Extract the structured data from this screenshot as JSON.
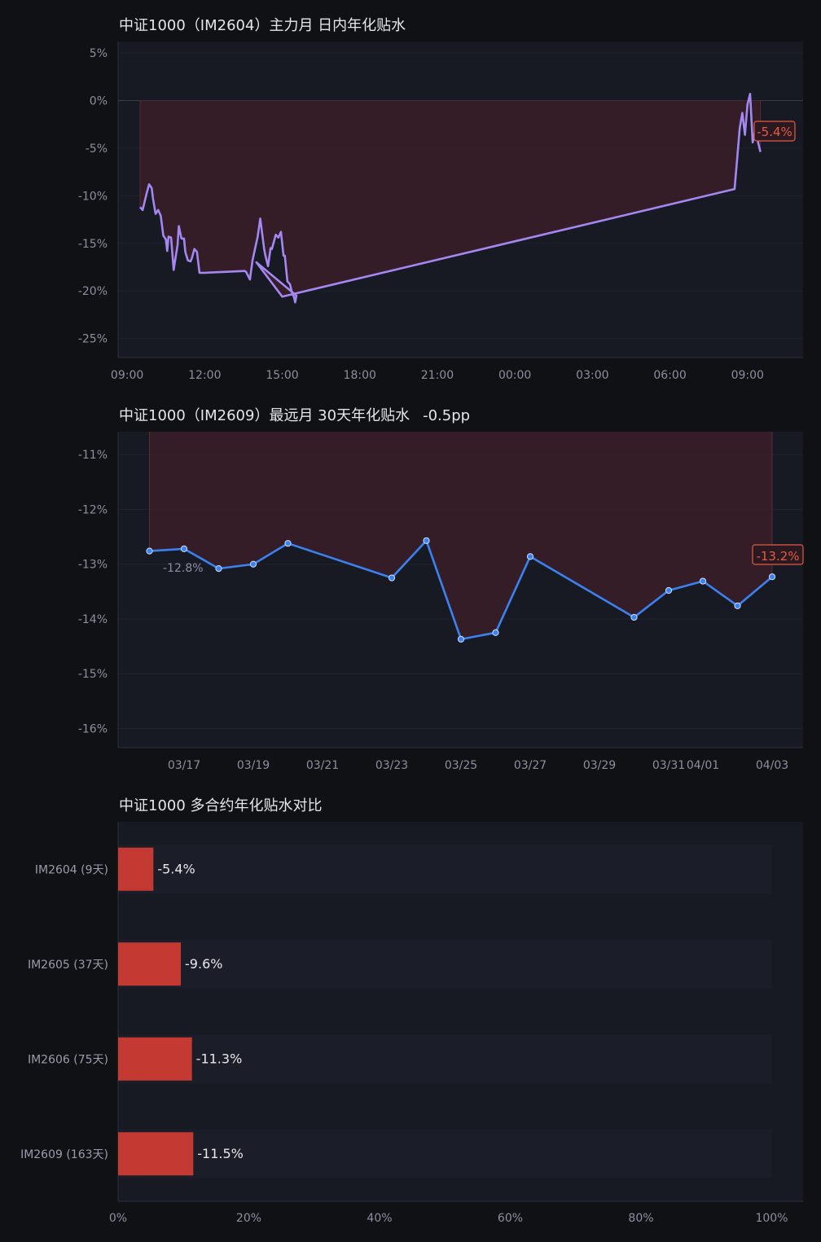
{
  "colors": {
    "background": "#101115",
    "panel": "#171a23",
    "line_intraday": "#a487f0",
    "line_daily": "#3b82f0",
    "fill_discount": "#3a1f28",
    "bar": "#c43a33",
    "label_red": "#e45a48"
  },
  "chart_data": [
    {
      "type": "line",
      "title": "中证1000（IM2604）主力月 日内年化贴水",
      "xlabel": "",
      "ylabel": "",
      "x_tick_labels": [
        "09:00",
        "12:00",
        "15:00",
        "18:00",
        "21:00",
        "00:00",
        "03:00",
        "06:00",
        "09:00"
      ],
      "x_unit": "hours since 09:00",
      "y_tick_labels": [
        "5%",
        "0%",
        "-5%",
        "-10%",
        "-15%",
        "-20%",
        "-25%"
      ],
      "ylim": [
        -27,
        6.2
      ],
      "xlim": [
        -0.35,
        26.15
      ],
      "series": [
        {
          "name": "",
          "x": [
            0.5,
            0.6,
            0.75,
            0.85,
            0.95,
            1.0,
            1.1,
            1.2,
            1.3,
            1.4,
            1.5,
            1.55,
            1.6,
            1.7,
            1.8,
            1.85,
            1.95,
            2.0,
            2.1,
            2.2,
            2.25,
            2.35,
            2.45,
            2.5,
            2.6,
            2.7,
            2.8,
            2.95,
            3.0,
            4.55,
            4.6,
            4.75,
            4.85,
            5.05,
            5.15,
            5.3,
            5.35,
            5.45,
            5.55,
            5.6,
            5.75,
            5.85,
            5.95,
            6.05,
            6.1,
            6.2,
            6.3,
            6.4,
            6.45,
            6.5,
            6.55,
            5.0,
            6.0,
            23.5,
            23.7,
            23.8,
            23.9,
            24.0,
            24.1,
            24.2,
            24.3,
            24.4,
            24.5
          ],
          "values": [
            -11.2,
            -11.5,
            -9.8,
            -8.8,
            -9.2,
            -10.3,
            -11.9,
            -11.5,
            -12.1,
            -14.2,
            -14.6,
            -15.8,
            -14.3,
            -14.4,
            -17.8,
            -16.9,
            -15.2,
            -13.2,
            -14.5,
            -14.5,
            -15.9,
            -16.8,
            -16.9,
            -16.6,
            -15.6,
            -15.9,
            -18.1,
            -18.1,
            -18.1,
            -17.9,
            -18.0,
            -18.8,
            -16.8,
            -14.3,
            -12.4,
            -15.6,
            -16.3,
            -17.4,
            -15.5,
            -15.6,
            -14.1,
            -14.4,
            -13.8,
            -16.3,
            -16.3,
            -19.0,
            -19.3,
            -20.4,
            -20.6,
            -21.2,
            -20.5,
            -17.0,
            -20.6,
            -9.3,
            -2.9,
            -1.3,
            -3.6,
            -0.4,
            0.7,
            -4.4,
            -3.1,
            -4.3,
            -5.4
          ]
        }
      ],
      "end_label": "-5.4%"
    },
    {
      "type": "line",
      "title": "中证1000（IM2609）最远月 30天年化贴水",
      "subtitle": "-0.5pp",
      "xlabel": "",
      "ylabel": "",
      "x_tick_labels": [
        "03/17",
        "03/19",
        "03/21",
        "03/23",
        "03/25",
        "03/27",
        "03/29",
        "03/31",
        "04/01",
        "04/03"
      ],
      "y_tick_labels": [
        "-11%",
        "-12%",
        "-13%",
        "-14%",
        "-15%",
        "-16%"
      ],
      "ylim": [
        -16.35,
        -10.58
      ],
      "x": [
        "03/16",
        "03/17",
        "03/18",
        "03/19",
        "03/20",
        "03/23",
        "03/24",
        "03/25",
        "03/26",
        "03/27",
        "03/30",
        "03/31",
        "04/01",
        "04/02",
        "04/03"
      ],
      "series": [
        {
          "name": "",
          "values": [
            -12.76,
            -12.72,
            -13.08,
            -13.0,
            -12.62,
            -13.25,
            -12.57,
            -14.37,
            -14.25,
            -12.86,
            -13.97,
            -13.48,
            -13.31,
            -13.76,
            -13.23
          ]
        }
      ],
      "min_label": "-12.8%",
      "end_label": "-13.2%"
    },
    {
      "type": "bar",
      "orientation": "horizontal",
      "title": "中证1000 多合约年化贴水对比",
      "xlabel": "",
      "ylabel": "",
      "categories": [
        "IM2604 (9天)",
        "IM2605 (37天)",
        "IM2606 (75天)",
        "IM2609 (163天)"
      ],
      "values": [
        -5.4,
        -9.6,
        -11.3,
        -11.5
      ],
      "value_labels": [
        "-5.4%",
        "-9.6%",
        "-11.3%",
        "-11.5%"
      ],
      "x_tick_labels": [
        "0%",
        "20%",
        "40%",
        "60%",
        "80%",
        "100%"
      ],
      "xlim": [
        0,
        104.8
      ]
    }
  ]
}
